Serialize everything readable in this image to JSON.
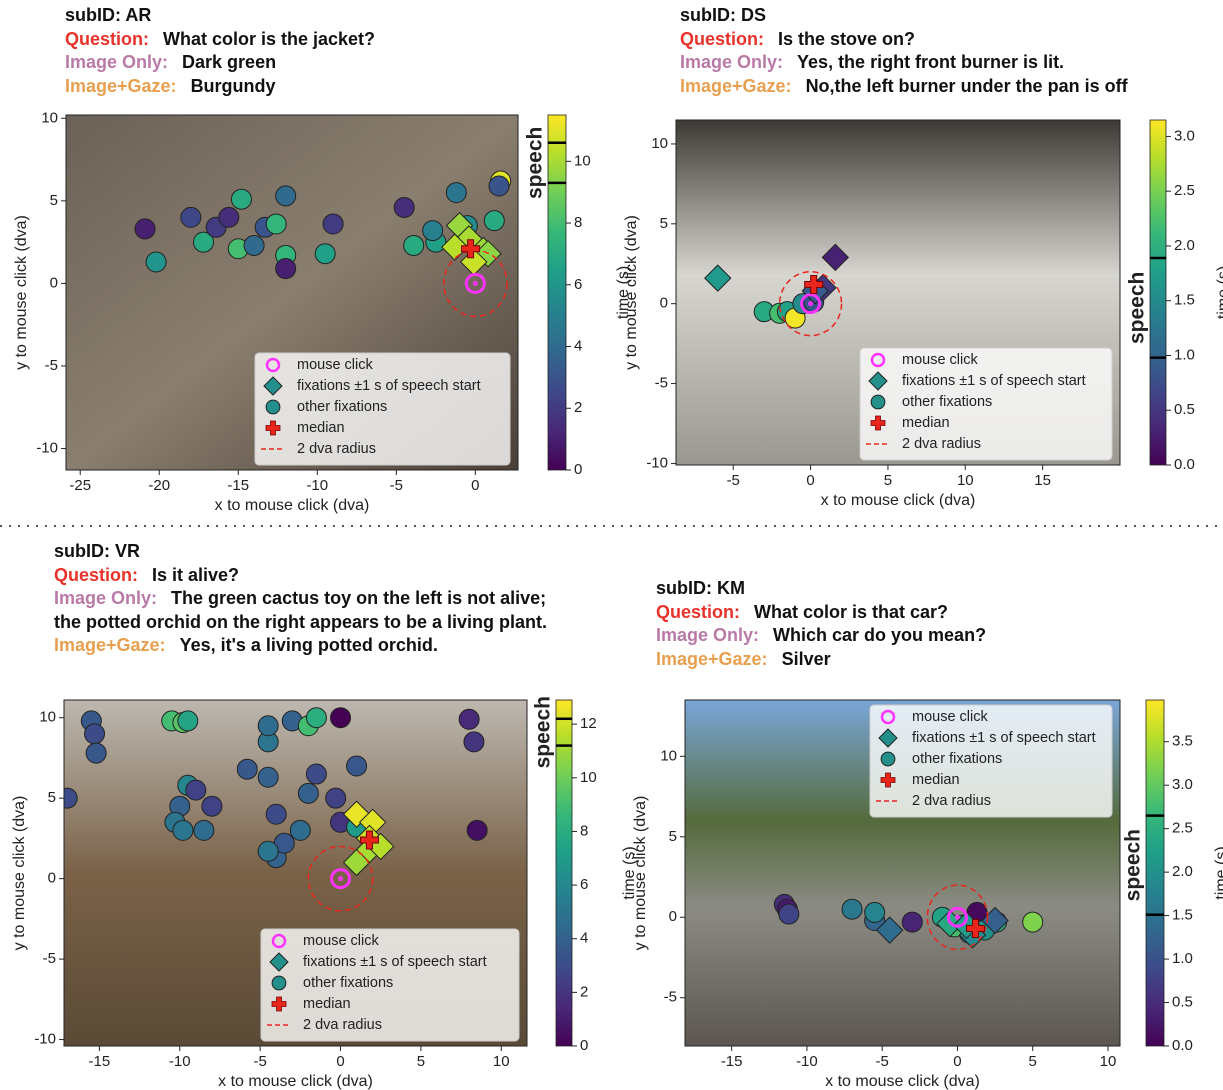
{
  "chart_data": [
    {
      "type": "scatter",
      "subid": "subID: AR",
      "question_label": "Question:",
      "question": "What color is the jacket?",
      "image_only_label": "Image Only:",
      "image_only": "Dark green",
      "gaze_label": "Image+Gaze:",
      "gaze": "Burgundy",
      "xlabel": "x to mouse click (dva)",
      "ylabel": "y to mouse click (dva)",
      "xlim": [
        -25.9,
        2.7
      ],
      "ylim": [
        -11.3,
        10.2
      ],
      "xticks": [
        -25,
        -20,
        -15,
        -10,
        -5,
        0
      ],
      "yticks": [
        -10,
        -5,
        0,
        5,
        10
      ],
      "legend": "lower right",
      "colorbar": {
        "label": "time (s)",
        "cmap": "viridis",
        "lim": [
          0,
          11.5
        ],
        "ticks": [
          0,
          2,
          4,
          6,
          8,
          10
        ],
        "speech_label": "speech",
        "speech": [
          9.3,
          10.6
        ]
      },
      "series": [
        {
          "name": "mouse click",
          "marker": "ring",
          "color": "#ff33ff",
          "x": [
            0
          ],
          "y": [
            0
          ]
        },
        {
          "name": "fixations ±1 s of speech start",
          "marker": "diamond",
          "x": [
            -1,
            -0.4,
            -1.3,
            0.5,
            0.8,
            -0.1
          ],
          "y": [
            3.5,
            2.7,
            2.2,
            2,
            1.8,
            1.3
          ],
          "t": [
            9.7,
            10,
            10.3,
            9.8,
            9.5,
            10.6
          ]
        },
        {
          "name": "other fixations",
          "marker": "circle",
          "x": [
            -20.9,
            -20.2,
            -18,
            -17.2,
            -16.4,
            -15.6,
            -15,
            -14.8,
            -14,
            -13.3,
            -12.6,
            -12,
            -12,
            -12,
            -9.5,
            -9,
            -4.5,
            -3.9,
            -2.5,
            -1.2,
            -0.5,
            1.6,
            1.2,
            1.5,
            -2.7
          ],
          "y": [
            3.3,
            1.3,
            4,
            2.5,
            3.4,
            4,
            2.1,
            5.1,
            2.3,
            3.4,
            3.6,
            1.7,
            0.9,
            5.3,
            1.8,
            3.6,
            4.6,
            2.3,
            2.5,
            5.5,
            3.5,
            6.2,
            3.8,
            5.9,
            3.2
          ],
          "t": [
            1,
            6,
            2.5,
            7,
            2,
            1.5,
            8,
            7,
            4,
            3,
            7.5,
            7.5,
            1,
            4,
            6.5,
            2,
            1.5,
            7,
            6.5,
            4.5,
            5.5,
            11,
            7,
            3,
            5
          ]
        },
        {
          "name": "median",
          "marker": "plus",
          "color": "#e8261c",
          "x": [
            -0.3
          ],
          "y": [
            2.1
          ]
        },
        {
          "name": "2 dva radius",
          "marker": "dashed-circle",
          "color": "#e8261c",
          "radius": 2
        }
      ]
    },
    {
      "type": "scatter",
      "subid": "subID: DS",
      "question_label": "Question:",
      "question": "Is the stove on?",
      "image_only_label": "Image Only:",
      "image_only": "Yes, the right front burner is lit.",
      "gaze_label": "Image+Gaze:",
      "gaze": "No,the left burner under the pan is off",
      "xlabel": "x to mouse click (dva)",
      "ylabel": "y to mouse click (dva)",
      "xlim": [
        -8.7,
        20
      ],
      "ylim": [
        -10.1,
        11.5
      ],
      "xticks": [
        -5,
        0,
        5,
        10,
        15
      ],
      "yticks": [
        -10,
        -5,
        0,
        5,
        10
      ],
      "legend": "lower right",
      "colorbar": {
        "label": "time (s)",
        "cmap": "viridis",
        "lim": [
          0,
          3.15
        ],
        "ticks": [
          {
            "value": 0,
            "label": "0.0"
          },
          0.5,
          {
            "value": 1,
            "label": "1.0"
          },
          1.5,
          {
            "value": 2,
            "label": "2.0"
          },
          2.5,
          {
            "value": 3,
            "label": "3.0"
          }
        ],
        "speech_label": "speech",
        "speech": [
          0.98,
          1.89
        ]
      },
      "series": [
        {
          "name": "mouse click",
          "marker": "ring",
          "color": "#ff33ff",
          "x": [
            0
          ],
          "y": [
            0
          ]
        },
        {
          "name": "fixations ±1 s of speech start",
          "marker": "diamond",
          "x": [
            -6,
            1.6,
            0.8,
            0.3
          ],
          "y": [
            1.6,
            2.9,
            1,
            0.8
          ],
          "t": [
            1.7,
            0.3,
            0.5,
            0.9
          ]
        },
        {
          "name": "other fixations",
          "marker": "circle",
          "x": [
            -3,
            -2,
            -1.5,
            -1,
            -0.5,
            0.2
          ],
          "y": [
            -0.5,
            -0.6,
            -0.5,
            -0.9,
            0,
            0.1
          ],
          "t": [
            1.9,
            2.2,
            1.8,
            3.1,
            1.5,
            0.8
          ]
        },
        {
          "name": "median",
          "marker": "plus",
          "color": "#e8261c",
          "x": [
            0.2
          ],
          "y": [
            1.2
          ]
        },
        {
          "name": "2 dva radius",
          "marker": "dashed-circle",
          "color": "#e8261c",
          "radius": 2
        }
      ]
    },
    {
      "type": "scatter",
      "subid": "subID: VR",
      "question_label": "Question:",
      "question": "Is it alive?",
      "image_only_label": "Image Only:",
      "image_only": "The green cactus toy on the left is not alive; the potted orchid on the right appears to be a living plant.",
      "gaze_label": "Image+Gaze:",
      "gaze": "Yes, it's a living potted orchid.",
      "xlabel": "x to mouse click (dva)",
      "ylabel": "y to mouse click (dva)",
      "xlim": [
        -17.2,
        11.6
      ],
      "ylim": [
        -10.4,
        11.1
      ],
      "xticks": [
        -15,
        -10,
        -5,
        0,
        5,
        10
      ],
      "yticks": [
        -10,
        -5,
        0,
        5,
        10
      ],
      "legend": "lower right",
      "colorbar": {
        "label": "time (s)",
        "cmap": "viridis",
        "lim": [
          0,
          12.9
        ],
        "ticks": [
          0,
          2,
          4,
          6,
          8,
          10,
          12
        ],
        "speech_label": "speech",
        "speech": [
          11.2,
          12.2
        ]
      },
      "series": [
        {
          "name": "mouse click",
          "marker": "ring",
          "color": "#ff33ff",
          "x": [
            0
          ],
          "y": [
            0
          ]
        },
        {
          "name": "fixations ±1 s of speech start",
          "marker": "diamond",
          "x": [
            1,
            2,
            1.8,
            1.5,
            1,
            2.5
          ],
          "y": [
            4,
            3.5,
            2.5,
            1.5,
            1,
            2
          ],
          "t": [
            12.5,
            12.3,
            11.8,
            11.2,
            11,
            11.5
          ]
        },
        {
          "name": "other fixations",
          "marker": "circle",
          "x": [
            -17,
            -15.5,
            -15.3,
            -15.2,
            -10.5,
            -9.8,
            -9.5,
            -10,
            -10.3,
            -9.8,
            -9.5,
            -9,
            -8.5,
            -8,
            -5.8,
            -4.5,
            -4,
            -4,
            -4.5,
            -4.5,
            -3,
            -2,
            -1.5,
            -3.5,
            -2.5,
            -2,
            -1.5,
            0,
            1,
            -0.3,
            0,
            8.3,
            8.5,
            8,
            1,
            -4.5
          ],
          "y": [
            5,
            9.8,
            9,
            7.8,
            9.8,
            9.7,
            9.8,
            4.5,
            3.5,
            3,
            5.8,
            5.5,
            3,
            4.5,
            6.8,
            6.3,
            4,
            1.3,
            8.5,
            9.5,
            9.8,
            9.5,
            10,
            2.2,
            3,
            5.3,
            6.5,
            10,
            7,
            5,
            3.5,
            8.5,
            3,
            9.9,
            3.2,
            1.7
          ],
          "t": [
            3,
            3.5,
            3,
            3.5,
            9,
            9.5,
            7.5,
            4,
            5,
            5,
            6,
            2.5,
            4.5,
            2.5,
            3.5,
            4,
            3,
            4,
            5,
            4.5,
            4,
            9,
            8,
            3.5,
            4.5,
            4,
            3,
            0,
            3.5,
            2.5,
            2,
            2,
            0.5,
            1.5,
            7,
            5
          ]
        },
        {
          "name": "median",
          "marker": "plus",
          "color": "#e8261c",
          "x": [
            1.8
          ],
          "y": [
            2.4
          ]
        },
        {
          "name": "2 dva radius",
          "marker": "dashed-circle",
          "color": "#e8261c",
          "radius": 2
        }
      ]
    },
    {
      "type": "scatter",
      "subid": "subID: KM",
      "question_label": "Question:",
      "question": "What color is that car?",
      "image_only_label": "Image Only:",
      "image_only": "Which car do you mean?",
      "gaze_label": "Image+Gaze:",
      "gaze": "Silver",
      "xlabel": "x to mouse click (dva)",
      "ylabel": "y to mouse click (dva)",
      "xlim": [
        -18.1,
        10.8
      ],
      "ylim": [
        -8,
        13.5
      ],
      "xticks": [
        -15,
        -10,
        -5,
        0,
        5,
        10
      ],
      "yticks": [
        -5,
        0,
        5,
        10
      ],
      "legend": "upper right",
      "colorbar": {
        "label": "time (s)",
        "cmap": "viridis",
        "lim": [
          0,
          3.98
        ],
        "ticks": [
          {
            "value": 0,
            "label": "0.0"
          },
          0.5,
          {
            "value": 1,
            "label": "1.0"
          },
          1.5,
          {
            "value": 2,
            "label": "2.0"
          },
          2.5,
          {
            "value": 3,
            "label": "3.0"
          },
          3.5
        ],
        "speech_label": "speech",
        "speech": [
          1.51,
          2.65
        ]
      },
      "series": [
        {
          "name": "mouse click",
          "marker": "ring",
          "color": "#ff33ff",
          "x": [
            0
          ],
          "y": [
            0
          ]
        },
        {
          "name": "fixations ±1 s of speech start",
          "marker": "diamond",
          "x": [
            -4.5,
            1,
            2.5,
            -0.5,
            0.6
          ],
          "y": [
            -0.8,
            -1.1,
            -0.2,
            -0.4,
            -0.5
          ],
          "t": [
            1.4,
            1.9,
            1.2,
            2.4,
            2.2
          ]
        },
        {
          "name": "other fixations",
          "marker": "circle",
          "x": [
            -11.5,
            -11.3,
            -11.2,
            -7,
            -5.5,
            -3,
            -5.5,
            0.8,
            1.3,
            0.3,
            2.6,
            5,
            -1,
            -0.2,
            1.8
          ],
          "y": [
            0.8,
            0.5,
            0.2,
            0.5,
            -0.2,
            -0.3,
            0.3,
            -1,
            0.3,
            -0.5,
            -0.3,
            -0.3,
            0,
            -0.6,
            -0.8
          ],
          "t": [
            0.5,
            0.3,
            0.8,
            1.6,
            1.3,
            0.4,
            1.8,
            1.1,
            0.1,
            2,
            2.4,
            3.2,
            2.3,
            2.8,
            2
          ]
        },
        {
          "name": "median",
          "marker": "plus",
          "color": "#e8261c",
          "x": [
            1.2
          ],
          "y": [
            -0.7
          ]
        },
        {
          "name": "2 dva radius",
          "marker": "dashed-circle",
          "color": "#e8261c",
          "radius": 2
        }
      ]
    }
  ]
}
